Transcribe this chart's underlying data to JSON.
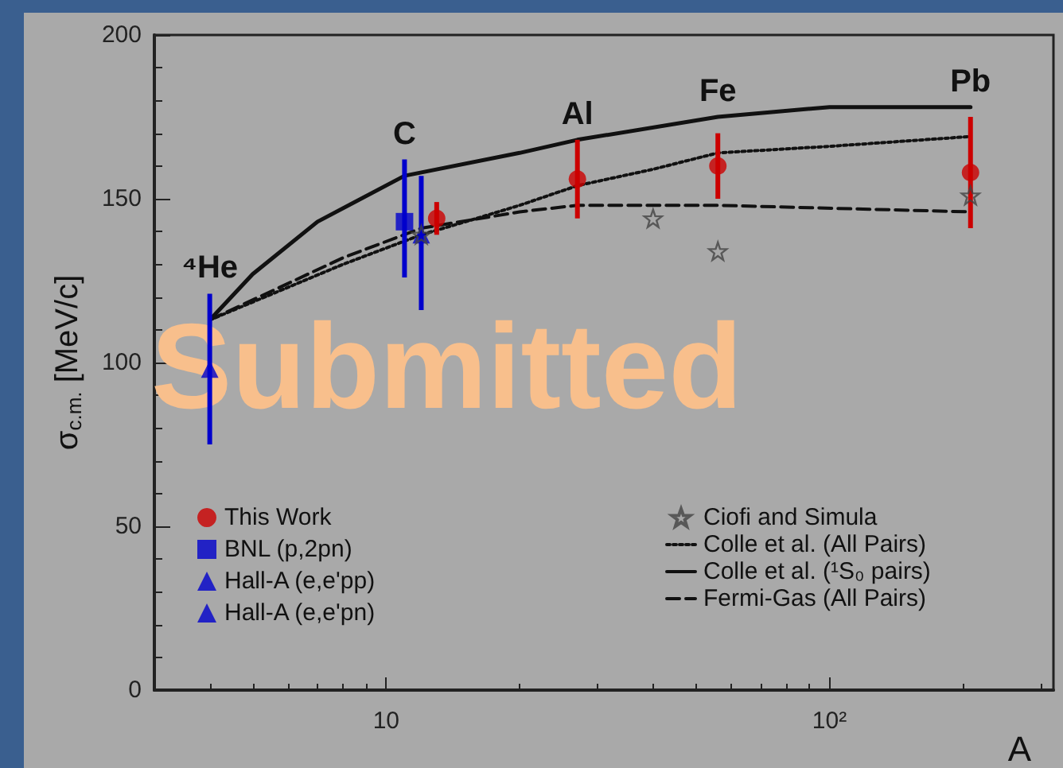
{
  "chart_data": {
    "type": "scatter",
    "xlabel": "A",
    "ylabel": "σ$_{c.m.}$ [MeV/c]",
    "log": "x",
    "xlim": [
      3,
      320
    ],
    "xticks": [
      10,
      {
        "value": 100,
        "label": "10²"
      }
    ],
    "ylim": [
      0,
      200
    ],
    "yticks": [
      0,
      50,
      100,
      150,
      200
    ],
    "grid": false,
    "legend": "bottom",
    "annotations": [
      {
        "text": "⁴He",
        "x": 4,
        "y": 98
      },
      {
        "text": "C",
        "x": 11,
        "y": 143
      },
      {
        "text": "Al",
        "x": 27,
        "y": 156
      },
      {
        "text": "Fe",
        "x": 56,
        "y": 160
      },
      {
        "text": "Pb",
        "x": 208,
        "y": 158
      },
      "Submitted"
    ],
    "series": [
      {
        "name": "This Work",
        "marker": "circle",
        "color": "#cc0000",
        "x": [
          13,
          27,
          56,
          208
        ],
        "values": [
          144,
          156,
          160,
          158
        ],
        "errors": [
          5,
          12,
          10,
          17
        ]
      },
      {
        "name": "BNL (p,2pn)",
        "marker": "square",
        "color": "#0000cc",
        "x": [
          11
        ],
        "values": [
          143
        ],
        "errors": [
          [
            126,
            162
          ]
        ]
      },
      {
        "name": "Hall-A (e,e'pp)",
        "marker": "triangle",
        "color": "#0000cc",
        "x": [
          12
        ],
        "values": [
          139
        ],
        "errors": [
          [
            116,
            157
          ]
        ]
      },
      {
        "name": "Hall-A (e,e'pn)",
        "marker": "triangle",
        "color": "#0000cc",
        "x": [
          4
        ],
        "values": [
          98
        ],
        "errors": [
          23
        ]
      },
      {
        "name": "Ciofi and Simula",
        "marker": "star",
        "color": "#444444",
        "x": [
          12,
          40,
          56,
          208
        ],
        "values": [
          139,
          144,
          134,
          151
        ]
      },
      {
        "name": "Colle et al. (All Pairs)",
        "type": "line",
        "line_style": "dotted",
        "color": "#111111",
        "x": [
          4,
          8,
          12,
          16,
          20,
          27,
          40,
          56,
          100,
          208
        ],
        "values": [
          113,
          130,
          139,
          144,
          148,
          154,
          159,
          164,
          166,
          169
        ]
      },
      {
        "name": "Colle et al. (¹S₀ pairs)",
        "type": "line",
        "line_style": "solid",
        "color": "#111111",
        "x": [
          4,
          5,
          7,
          11,
          20,
          27,
          56,
          100,
          208
        ],
        "values": [
          113,
          127,
          143,
          157,
          164,
          168,
          175,
          178,
          178
        ]
      },
      {
        "name": "Fermi-Gas (All Pairs)",
        "type": "line",
        "line_style": "dashed",
        "color": "#111111",
        "x": [
          4,
          8,
          12,
          20,
          27,
          56,
          208
        ],
        "values": [
          113,
          132,
          141,
          146,
          148,
          148,
          146
        ]
      }
    ]
  }
}
